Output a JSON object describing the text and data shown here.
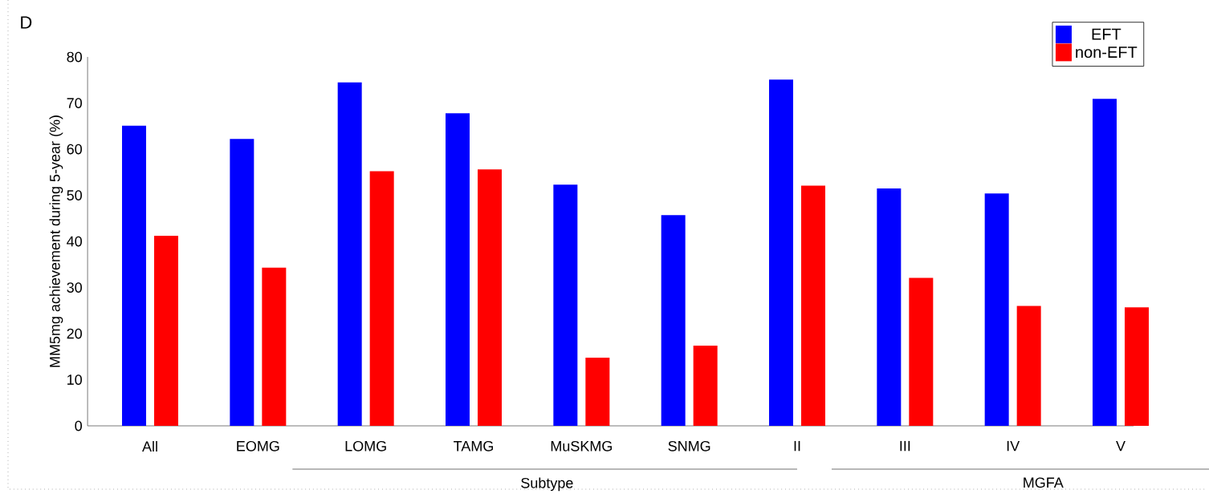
{
  "chart_data": {
    "type": "bar",
    "ylabel": "MM5mg achievement during 5-year (%)",
    "categories": [
      "All",
      "EOMG",
      "LOMG",
      "TAMG",
      "MuSKMG",
      "SNMG",
      "II",
      "III",
      "IV",
      "V"
    ],
    "series": [
      {
        "name": "EFT",
        "color": "#0000ff",
        "values": [
          65.1,
          62.2,
          74.5,
          67.8,
          52.3,
          45.7,
          75.1,
          51.5,
          50.4,
          70.9
        ]
      },
      {
        "name": "non-EFT",
        "color": "#ff0000",
        "values": [
          41.2,
          34.3,
          55.2,
          55.6,
          14.8,
          17.4,
          52.1,
          32.1,
          26.0,
          25.7
        ]
      }
    ],
    "ylim": [
      0,
      80
    ],
    "yticks": [
      0,
      10,
      20,
      30,
      40,
      50,
      60,
      70,
      80
    ],
    "legend": "top right",
    "annotations": [
      "D",
      "Subtype",
      "MGFA"
    ]
  }
}
